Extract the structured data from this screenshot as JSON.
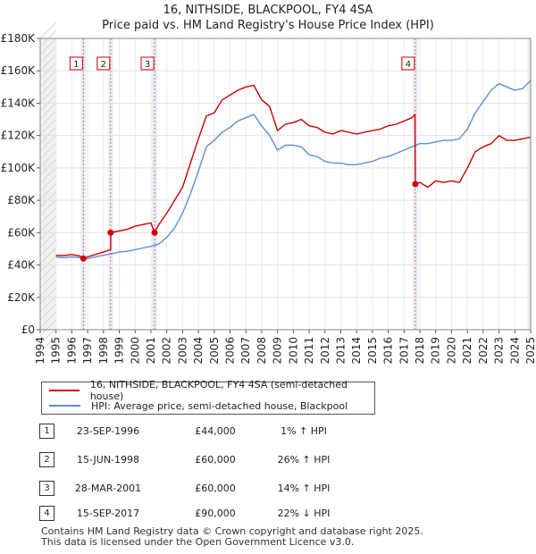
{
  "chart_data": {
    "type": "line",
    "title": "16, NITHSIDE, BLACKPOOL, FY4 4SA",
    "subtitle": "Price paid vs. HM Land Registry's House Price Index (HPI)",
    "xlim": [
      1994,
      2025
    ],
    "ylim": [
      0,
      180000
    ],
    "x_ticks": [
      "1994",
      "1995",
      "1996",
      "1997",
      "1998",
      "1999",
      "2000",
      "2001",
      "2002",
      "2003",
      "2004",
      "2005",
      "2006",
      "2007",
      "2008",
      "2009",
      "2010",
      "2011",
      "2012",
      "2013",
      "2014",
      "2015",
      "2016",
      "2017",
      "2018",
      "2019",
      "2020",
      "2021",
      "2022",
      "2023",
      "2024",
      "2025"
    ],
    "y_ticks": [
      {
        "value": 0,
        "label": "£0"
      },
      {
        "value": 20000,
        "label": "£20K"
      },
      {
        "value": 40000,
        "label": "£40K"
      },
      {
        "value": 60000,
        "label": "£60K"
      },
      {
        "value": 80000,
        "label": "£80K"
      },
      {
        "value": 100000,
        "label": "£100K"
      },
      {
        "value": 120000,
        "label": "£120K"
      },
      {
        "value": 140000,
        "label": "£140K"
      },
      {
        "value": 160000,
        "label": "£160K"
      },
      {
        "value": 180000,
        "label": "£180K"
      }
    ],
    "legend_position": "below-chart",
    "colors": {
      "price": "#cc0000",
      "hpi": "#5b8fd0",
      "marker_line": "#e07070",
      "shade": "#dde6f4"
    },
    "series": [
      {
        "name": "16, NITHSIDE, BLACKPOOL, FY4 4SA (semi-detached house)",
        "color": "#cc0000",
        "x": [
          1995.0,
          1995.5,
          1996.0,
          1996.5,
          1996.73,
          1997.0,
          1997.5,
          1998.0,
          1998.45,
          1998.46,
          1999.0,
          1999.5,
          2000.0,
          2000.5,
          2001.0,
          2001.23,
          2001.5,
          2002.0,
          2002.5,
          2003.0,
          2003.5,
          2004.0,
          2004.5,
          2005.0,
          2005.5,
          2006.0,
          2006.5,
          2007.0,
          2007.5,
          2008.0,
          2008.5,
          2009.0,
          2009.5,
          2010.0,
          2010.5,
          2011.0,
          2011.5,
          2012.0,
          2012.5,
          2013.0,
          2013.5,
          2014.0,
          2014.5,
          2015.0,
          2015.5,
          2016.0,
          2016.5,
          2017.0,
          2017.5,
          2017.69,
          2017.71,
          2018.0,
          2018.5,
          2019.0,
          2019.5,
          2020.0,
          2020.5,
          2021.0,
          2021.5,
          2022.0,
          2022.5,
          2023.0,
          2023.5,
          2024.0,
          2024.5,
          2025.0
        ],
        "values": [
          46000,
          45800,
          46500,
          45500,
          44000,
          45000,
          46500,
          48000,
          49500,
          60000,
          61000,
          62000,
          64000,
          65000,
          66000,
          60000,
          65000,
          72000,
          80000,
          88000,
          103000,
          118000,
          132000,
          134000,
          142000,
          145000,
          148000,
          150000,
          151000,
          142000,
          138000,
          123000,
          127000,
          128000,
          130000,
          126000,
          125000,
          122000,
          121000,
          123000,
          122000,
          121000,
          122000,
          123000,
          124000,
          126000,
          127000,
          129000,
          131000,
          133000,
          90000,
          91000,
          88000,
          92000,
          91000,
          92000,
          91000,
          100000,
          110000,
          113000,
          115000,
          120000,
          117000,
          117000,
          118000,
          119000
        ]
      },
      {
        "name": "HPI: Average price, semi-detached house, Blackpool",
        "color": "#5b8fd0",
        "x": [
          1995.0,
          1995.5,
          1996.0,
          1996.5,
          1997.0,
          1997.5,
          1998.0,
          1998.5,
          1999.0,
          1999.5,
          2000.0,
          2000.5,
          2001.0,
          2001.5,
          2002.0,
          2002.5,
          2003.0,
          2003.5,
          2004.0,
          2004.5,
          2005.0,
          2005.5,
          2006.0,
          2006.5,
          2007.0,
          2007.5,
          2008.0,
          2008.5,
          2009.0,
          2009.5,
          2010.0,
          2010.5,
          2011.0,
          2011.5,
          2012.0,
          2012.5,
          2013.0,
          2013.5,
          2014.0,
          2014.5,
          2015.0,
          2015.5,
          2016.0,
          2016.5,
          2017.0,
          2017.5,
          2018.0,
          2018.5,
          2019.0,
          2019.5,
          2020.0,
          2020.5,
          2021.0,
          2021.5,
          2022.0,
          2022.5,
          2023.0,
          2023.5,
          2024.0,
          2024.5,
          2025.0
        ],
        "values": [
          45000,
          44500,
          45000,
          44500,
          44000,
          45000,
          46000,
          47000,
          48000,
          48500,
          49500,
          50500,
          51500,
          53000,
          57000,
          63000,
          72000,
          84000,
          98000,
          113000,
          117000,
          122000,
          125000,
          129000,
          131000,
          133000,
          126000,
          120000,
          111000,
          114000,
          114000,
          113000,
          108000,
          107000,
          104000,
          103000,
          103000,
          102000,
          102000,
          103000,
          104000,
          106000,
          107000,
          109000,
          111000,
          113000,
          115000,
          115000,
          116000,
          117000,
          117000,
          118000,
          124000,
          134000,
          141000,
          148000,
          152000,
          150000,
          148000,
          149000,
          154000
        ]
      }
    ],
    "transactions": [
      {
        "id": "1",
        "year": 1996.73,
        "date": "23-SEP-1996",
        "price": "£44,000",
        "price_value": 44000,
        "hpi_change": "1% ↑ HPI"
      },
      {
        "id": "2",
        "year": 1998.45,
        "date": "15-JUN-1998",
        "price": "£60,000",
        "price_value": 60000,
        "hpi_change": "26% ↑ HPI"
      },
      {
        "id": "3",
        "year": 2001.23,
        "date": "28-MAR-2001",
        "price": "£60,000",
        "price_value": 60000,
        "hpi_change": "14% ↑ HPI"
      },
      {
        "id": "4",
        "year": 2017.71,
        "date": "15-SEP-2017",
        "price": "£90,000",
        "price_value": 90000,
        "hpi_change": "22% ↓ HPI"
      }
    ]
  },
  "legend": {
    "price_label": "16, NITHSIDE, BLACKPOOL, FY4 4SA (semi-detached house)",
    "hpi_label": "HPI: Average price, semi-detached house, Blackpool"
  },
  "footer": {
    "line1": "Contains HM Land Registry data © Crown copyright and database right 2025.",
    "line2": "This data is licensed under the Open Government Licence v3.0."
  }
}
